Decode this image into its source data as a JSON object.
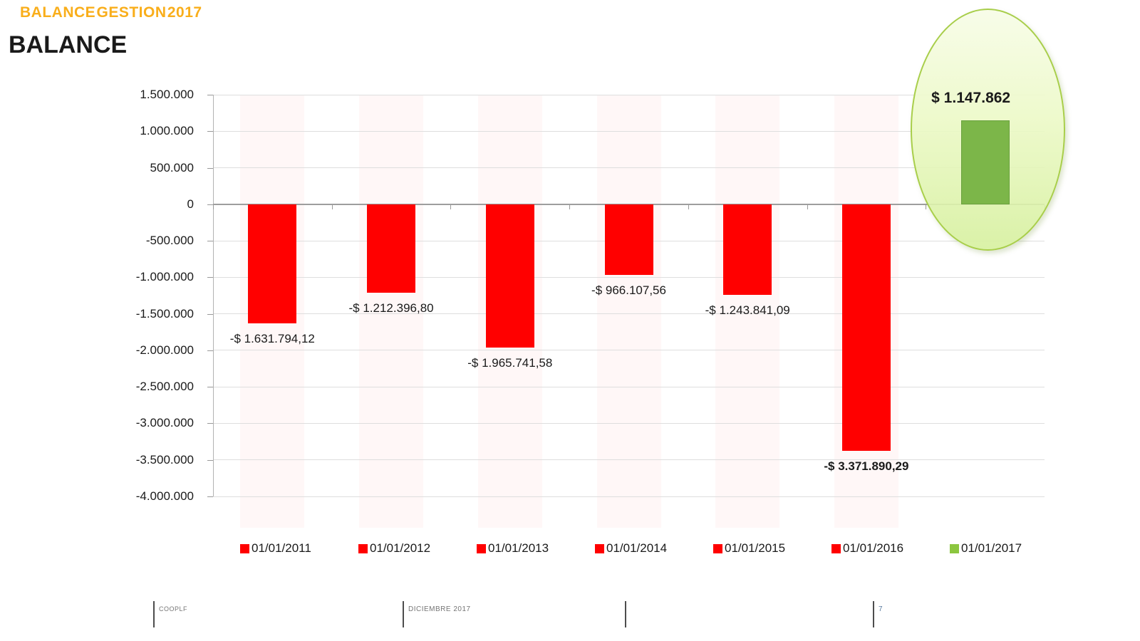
{
  "header": {
    "eyebrow": "BALANCE GESTION 2017",
    "title": "BALANCE"
  },
  "chart_data": {
    "type": "bar",
    "title": "BALANCE",
    "categories": [
      "01/01/2011",
      "01/01/2012",
      "01/01/2013",
      "01/01/2014",
      "01/01/2015",
      "01/01/2016",
      "01/01/2017"
    ],
    "values": [
      -1631794.12,
      -1212396.8,
      -1965741.58,
      -966107.56,
      -1243841.09,
      -3371890.29,
      1147862
    ],
    "value_labels": [
      "-$ 1.631.794,12",
      "-$ 1.212.396,80",
      "-$ 1.965.741,58",
      "-$ 966.107,56",
      "-$ 1.243.841,09",
      "-$ 3.371.890,29",
      "$ 1.147.862"
    ],
    "bold_value_labels": [
      false,
      false,
      false,
      false,
      false,
      true,
      true
    ],
    "bar_colors": [
      "#FF0000",
      "#FF0000",
      "#FF0000",
      "#FF0000",
      "#FF0000",
      "#FF0000",
      "#7CB649"
    ],
    "ylim": [
      -4000000,
      1500000
    ],
    "ytick_step": 500000,
    "yticks": [
      {
        "value": 1500000,
        "label": "1.500.000"
      },
      {
        "value": 1000000,
        "label": "1.000.000"
      },
      {
        "value": 500000,
        "label": "500.000"
      },
      {
        "value": 0,
        "label": "0"
      },
      {
        "value": -500000,
        "label": "-500.000"
      },
      {
        "value": -1000000,
        "label": "-1.000.000"
      },
      {
        "value": -1500000,
        "label": "-1.500.000"
      },
      {
        "value": -2000000,
        "label": "-2.000.000"
      },
      {
        "value": -2500000,
        "label": "-2.500.000"
      },
      {
        "value": -3000000,
        "label": "-3.000.000"
      },
      {
        "value": -3500000,
        "label": "-3.500.000"
      },
      {
        "value": -4000000,
        "label": "-4.000.000"
      }
    ],
    "grid": true,
    "legend_position": "bottom",
    "legend": [
      {
        "label": "01/01/2011",
        "color": "#FF0000"
      },
      {
        "label": "01/01/2012",
        "color": "#FF0000"
      },
      {
        "label": "01/01/2013",
        "color": "#FF0000"
      },
      {
        "label": "01/01/2014",
        "color": "#FF0000"
      },
      {
        "label": "01/01/2015",
        "color": "#FF0000"
      },
      {
        "label": "01/01/2016",
        "color": "#FF0000"
      },
      {
        "label": "01/01/2017",
        "color": "#8CC63F"
      }
    ],
    "highlight": {
      "category": "01/01/2017",
      "label": "$ 1.147.862"
    }
  },
  "footer": {
    "items": [
      "COOPLF",
      "DICIEMBRE 2017",
      "",
      "7"
    ]
  },
  "colors": {
    "negative": "#FF0000",
    "positive": "#7CB649",
    "legend_positive": "#8CC63F",
    "title_accent": "#F9AE1B",
    "ellipse_border": "#A8CE4A"
  }
}
